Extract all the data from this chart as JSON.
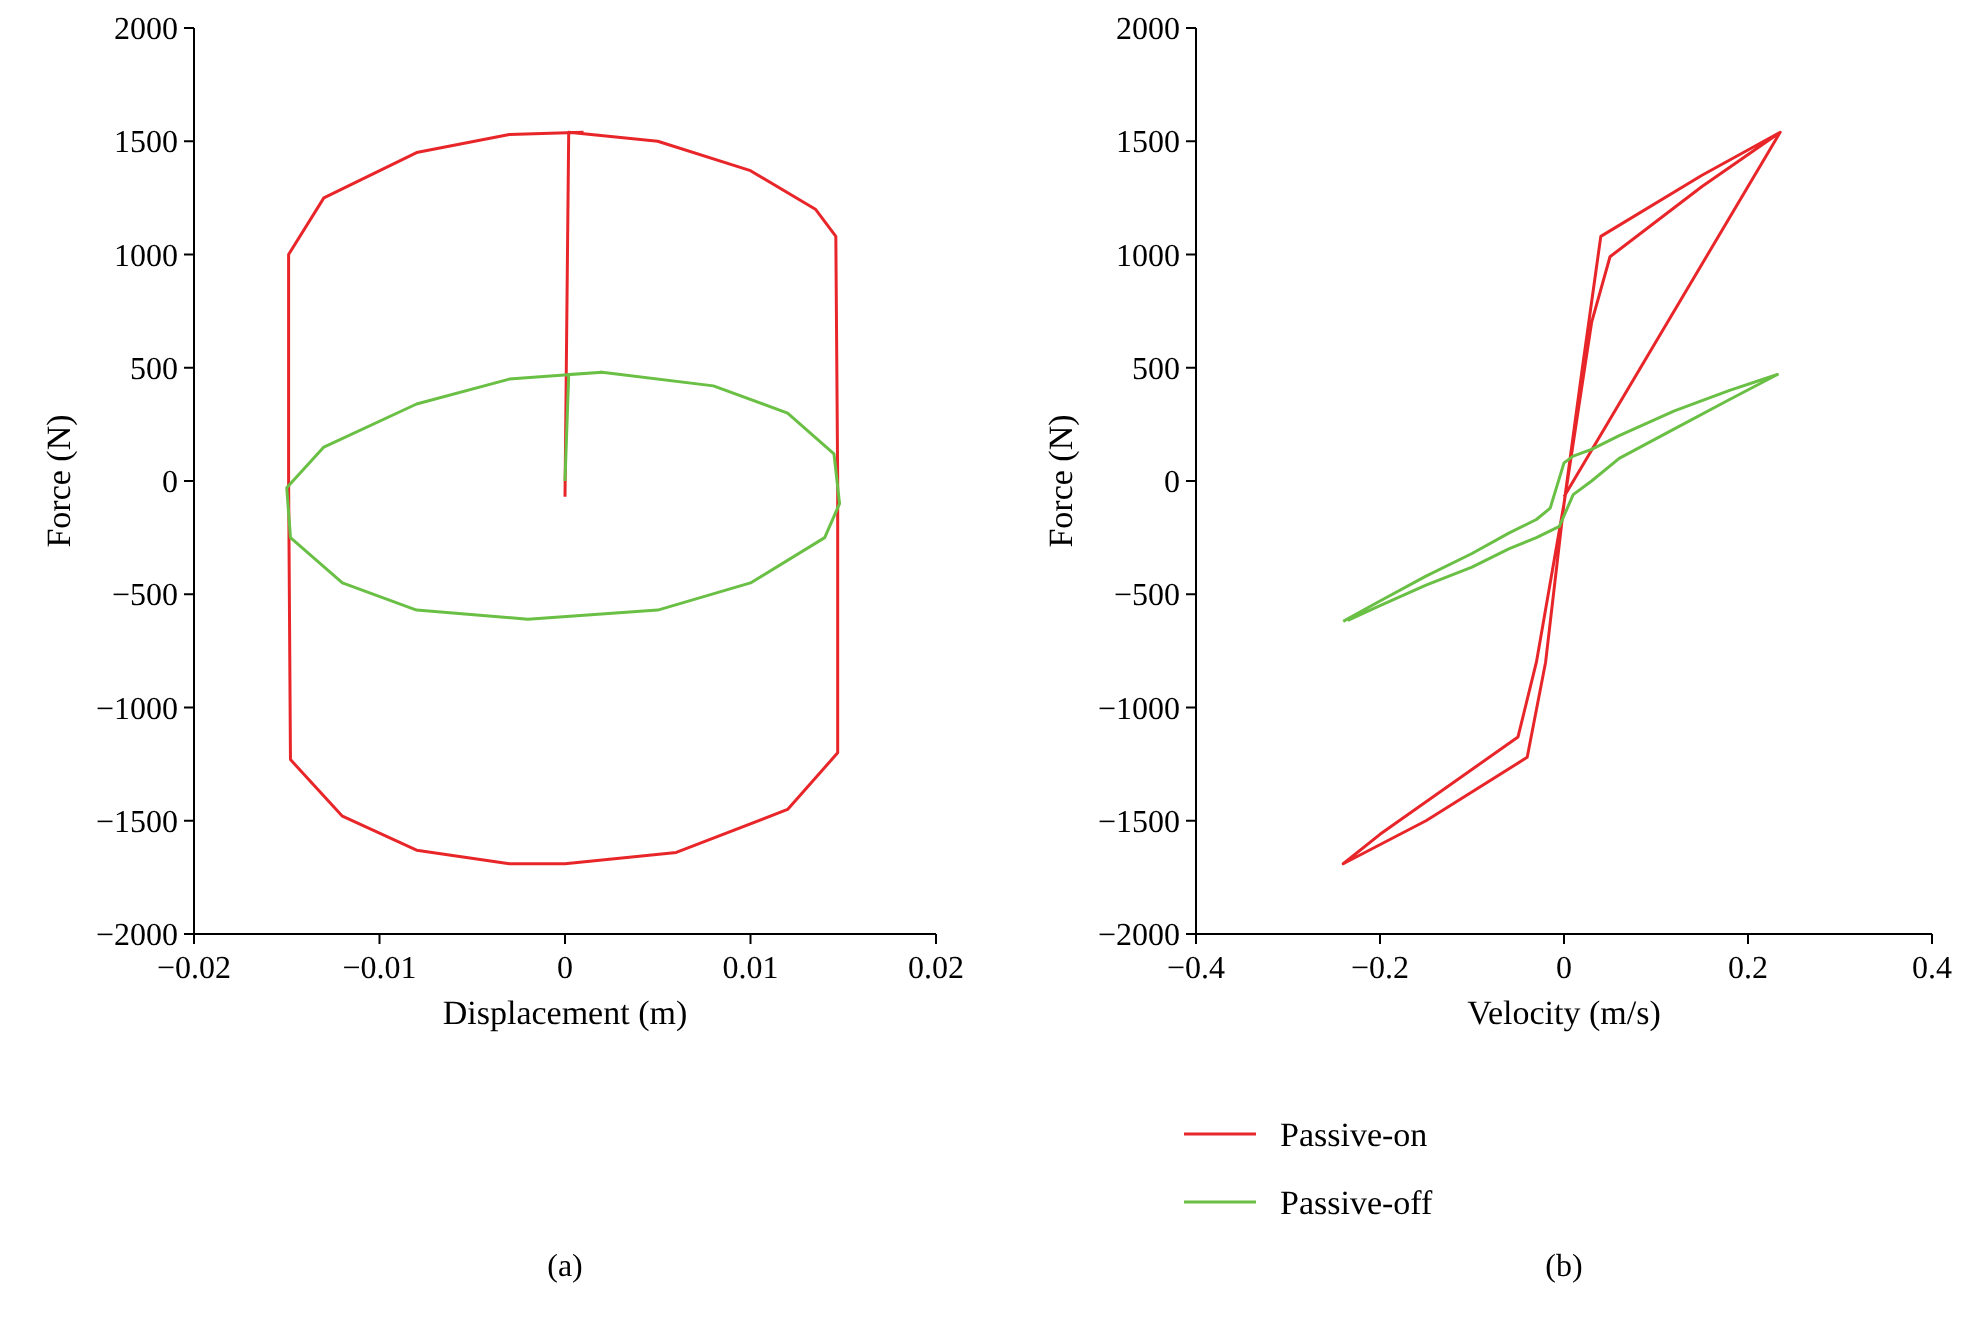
{
  "chart_data": [
    {
      "type": "line",
      "xlabel": "Displacement (m)",
      "ylabel": "Force (N)",
      "xlim": [
        -0.02,
        0.02
      ],
      "xticks": [
        -0.02,
        -0.01,
        0,
        0.01,
        0.02
      ],
      "ylim": [
        -2000,
        2000
      ],
      "yticks": [
        -2000,
        -1500,
        -1000,
        -500,
        0,
        500,
        1000,
        1500,
        2000
      ],
      "grid": false,
      "legend": false,
      "marker": "none",
      "line_style": "solid",
      "annotations": [
        "(a)"
      ],
      "series": [
        {
          "color": "#e8262a",
          "x": [
            0,
            0.0002,
            0.005,
            0.01,
            0.0135,
            0.0146,
            0.0147,
            0.0147,
            0.012,
            0.006,
            0,
            -0.003,
            -0.008,
            -0.012,
            -0.0148,
            -0.0149,
            -0.0149,
            -0.013,
            -0.008,
            -0.003,
            0.001
          ],
          "values": [
            -70,
            1540,
            1500,
            1370,
            1200,
            1080,
            0,
            -1200,
            -1450,
            -1640,
            -1690,
            -1690,
            -1630,
            -1480,
            -1230,
            0,
            1000,
            1250,
            1450,
            1530,
            1540
          ]
        },
        {
          "color": "#6abf45",
          "x": [
            0,
            0.0002,
            0.002,
            0.008,
            0.012,
            0.0145,
            0.0148,
            0.014,
            0.01,
            0.005,
            -0.002,
            -0.008,
            -0.012,
            -0.0148,
            -0.015,
            -0.013,
            -0.008,
            -0.003,
            0.002
          ],
          "values": [
            0,
            470,
            480,
            420,
            300,
            120,
            -100,
            -250,
            -450,
            -570,
            -610,
            -570,
            -450,
            -250,
            -30,
            150,
            340,
            450,
            480
          ]
        }
      ]
    },
    {
      "type": "line",
      "xlabel": "Velocity (m/s)",
      "ylabel": "Force (N)",
      "xlim": [
        -0.4,
        0.4
      ],
      "xticks": [
        -0.4,
        -0.2,
        0,
        0.2,
        0.4
      ],
      "ylim": [
        -2000,
        2000
      ],
      "yticks": [
        -2000,
        -1500,
        -1000,
        -500,
        0,
        500,
        1000,
        1500,
        2000
      ],
      "grid": false,
      "legend": "bottom",
      "marker": "none",
      "line_style": "solid",
      "annotations": [
        "(b)"
      ],
      "series": [
        {
          "name": "Passive-on",
          "color": "#e8262a",
          "x": [
            0,
            0.235,
            0.15,
            0.05,
            0.03,
            0,
            -0.02,
            -0.04,
            -0.15,
            -0.24,
            -0.2,
            -0.05,
            -0.03,
            0,
            0.02,
            0.04,
            0.15,
            0.235
          ],
          "values": [
            -70,
            1540,
            1300,
            990,
            700,
            -100,
            -800,
            -1220,
            -1500,
            -1690,
            -1560,
            -1130,
            -800,
            -100,
            500,
            1080,
            1350,
            1540
          ]
        },
        {
          "name": "Passive-off",
          "color": "#6abf45",
          "x": [
            -0.24,
            -0.2,
            -0.15,
            -0.1,
            -0.06,
            -0.03,
            -0.015,
            0,
            0.01,
            0.03,
            0.06,
            0.12,
            0.18,
            0.232,
            0.18,
            0.12,
            0.06,
            0.03,
            0.01,
            -0.005,
            -0.03,
            -0.06,
            -0.1,
            -0.15,
            -0.2,
            -0.235
          ],
          "values": [
            -620,
            -530,
            -420,
            -320,
            -230,
            -170,
            -120,
            80,
            110,
            140,
            200,
            310,
            400,
            470,
            360,
            230,
            100,
            0,
            -60,
            -200,
            -250,
            -300,
            -380,
            -460,
            -550,
            -615
          ]
        }
      ]
    }
  ]
}
